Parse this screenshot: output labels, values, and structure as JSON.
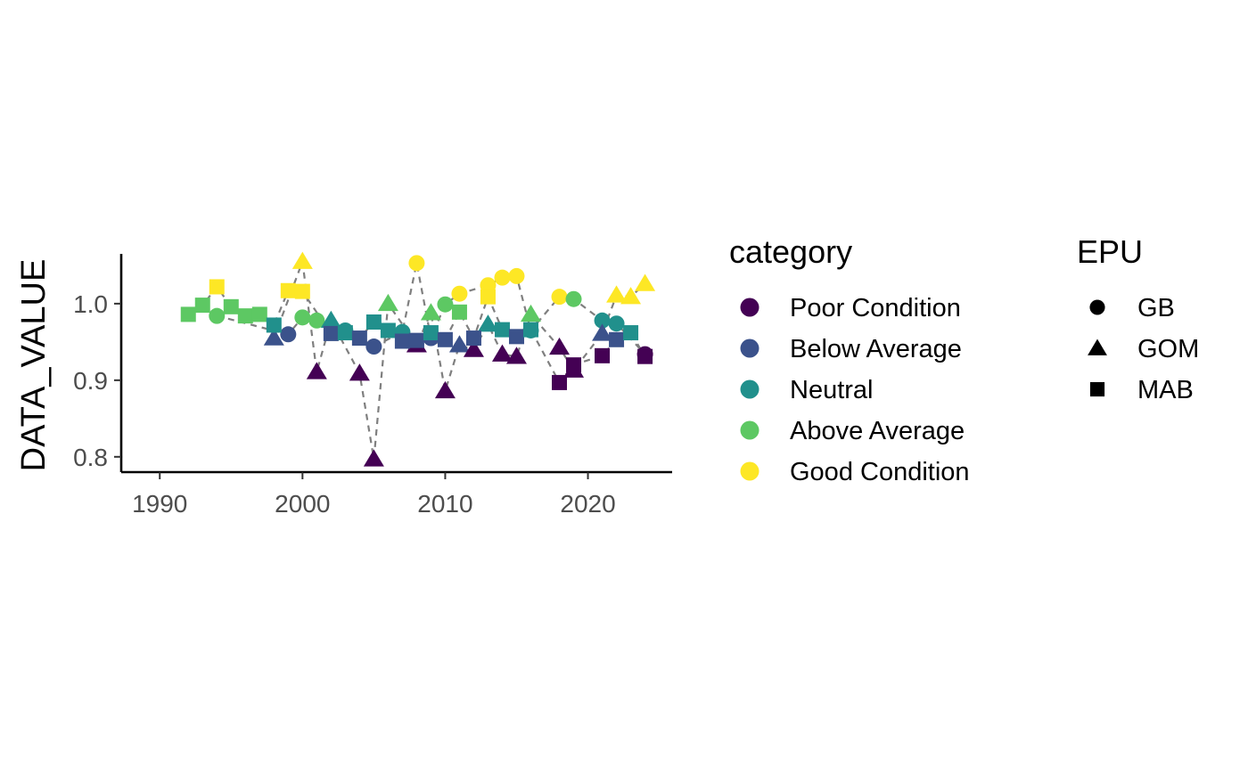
{
  "colors": {
    "Poor Condition": "#440154",
    "Below Average": "#3B528B",
    "Neutral": "#21908C",
    "Above Average": "#5DC863",
    "Good Condition": "#FDE725",
    "line": "#7F7F7F",
    "axis": "#000000",
    "tick_label": "#4D4D4D"
  },
  "chart_data": {
    "type": "scatter",
    "title": "",
    "xlabel": "",
    "ylabel": "DATA_VALUE",
    "xlim": [
      1987.3,
      2025.9
    ],
    "ylim": [
      0.78,
      1.065
    ],
    "x_ticks": [
      1990,
      2000,
      2010,
      2020
    ],
    "y_ticks": [
      0.8,
      0.9,
      1.0
    ],
    "y_tick_labels": [
      "0.8",
      "0.9",
      "1.0"
    ],
    "grid": false,
    "connecting_line": "dashed, per EPU",
    "legends": [
      {
        "title": "category",
        "placement": "right",
        "entries": [
          "Poor Condition",
          "Below Average",
          "Neutral",
          "Above Average",
          "Good Condition"
        ]
      },
      {
        "title": "EPU",
        "placement": "right",
        "entries": [
          {
            "label": "GB",
            "shape": "circle"
          },
          {
            "label": "GOM",
            "shape": "triangle"
          },
          {
            "label": "MAB",
            "shape": "square"
          }
        ]
      }
    ],
    "series": [
      {
        "name": "GB",
        "shape": "circle",
        "points": [
          {
            "x": 1994,
            "y": 0.984,
            "category": "Above Average"
          },
          {
            "x": 1999,
            "y": 0.96,
            "category": "Below Average"
          },
          {
            "x": 2000,
            "y": 0.982,
            "category": "Above Average"
          },
          {
            "x": 2001,
            "y": 0.978,
            "category": "Above Average"
          },
          {
            "x": 2003,
            "y": 0.965,
            "category": "Neutral"
          },
          {
            "x": 2005,
            "y": 0.944,
            "category": "Below Average"
          },
          {
            "x": 2007,
            "y": 0.963,
            "category": "Neutral"
          },
          {
            "x": 2008,
            "y": 1.053,
            "category": "Good Condition"
          },
          {
            "x": 2009,
            "y": 0.955,
            "category": "Below Average"
          },
          {
            "x": 2010,
            "y": 0.999,
            "category": "Above Average"
          },
          {
            "x": 2011,
            "y": 1.013,
            "category": "Good Condition"
          },
          {
            "x": 2013,
            "y": 1.024,
            "category": "Good Condition"
          },
          {
            "x": 2014,
            "y": 1.034,
            "category": "Good Condition"
          },
          {
            "x": 2015,
            "y": 1.036,
            "category": "Good Condition"
          },
          {
            "x": 2016,
            "y": 0.965,
            "category": "Neutral"
          },
          {
            "x": 2018,
            "y": 1.009,
            "category": "Good Condition"
          },
          {
            "x": 2019,
            "y": 1.006,
            "category": "Above Average"
          },
          {
            "x": 2021,
            "y": 0.978,
            "category": "Neutral"
          },
          {
            "x": 2022,
            "y": 0.974,
            "category": "Neutral"
          },
          {
            "x": 2024,
            "y": 0.934,
            "category": "Poor Condition"
          }
        ]
      },
      {
        "name": "GOM",
        "shape": "triangle",
        "points": [
          {
            "x": 1998,
            "y": 0.955,
            "category": "Below Average"
          },
          {
            "x": 2000,
            "y": 1.055,
            "category": "Good Condition"
          },
          {
            "x": 2001,
            "y": 0.911,
            "category": "Poor Condition"
          },
          {
            "x": 2002,
            "y": 0.978,
            "category": "Neutral"
          },
          {
            "x": 2004,
            "y": 0.909,
            "category": "Poor Condition"
          },
          {
            "x": 2005,
            "y": 0.797,
            "category": "Poor Condition"
          },
          {
            "x": 2006,
            "y": 1.0,
            "category": "Above Average"
          },
          {
            "x": 2008,
            "y": 0.946,
            "category": "Poor Condition"
          },
          {
            "x": 2009,
            "y": 0.988,
            "category": "Above Average"
          },
          {
            "x": 2010,
            "y": 0.886,
            "category": "Poor Condition"
          },
          {
            "x": 2011,
            "y": 0.946,
            "category": "Below Average"
          },
          {
            "x": 2012,
            "y": 0.94,
            "category": "Poor Condition"
          },
          {
            "x": 2013,
            "y": 0.973,
            "category": "Neutral"
          },
          {
            "x": 2014,
            "y": 0.934,
            "category": "Poor Condition"
          },
          {
            "x": 2015,
            "y": 0.931,
            "category": "Poor Condition"
          },
          {
            "x": 2016,
            "y": 0.986,
            "category": "Above Average"
          },
          {
            "x": 2018,
            "y": 0.943,
            "category": "Poor Condition"
          },
          {
            "x": 2019,
            "y": 0.913,
            "category": "Poor Condition"
          },
          {
            "x": 2021,
            "y": 0.961,
            "category": "Below Average"
          },
          {
            "x": 2022,
            "y": 1.011,
            "category": "Good Condition"
          },
          {
            "x": 2023,
            "y": 1.009,
            "category": "Good Condition"
          },
          {
            "x": 2024,
            "y": 1.026,
            "category": "Good Condition"
          }
        ]
      },
      {
        "name": "MAB",
        "shape": "square",
        "points": [
          {
            "x": 1992,
            "y": 0.986,
            "category": "Above Average"
          },
          {
            "x": 1993,
            "y": 0.998,
            "category": "Above Average"
          },
          {
            "x": 1994,
            "y": 1.022,
            "category": "Good Condition"
          },
          {
            "x": 1995,
            "y": 0.996,
            "category": "Above Average"
          },
          {
            "x": 1996,
            "y": 0.984,
            "category": "Above Average"
          },
          {
            "x": 1997,
            "y": 0.986,
            "category": "Above Average"
          },
          {
            "x": 1998,
            "y": 0.972,
            "category": "Neutral"
          },
          {
            "x": 1999,
            "y": 1.017,
            "category": "Good Condition"
          },
          {
            "x": 2000,
            "y": 1.016,
            "category": "Good Condition"
          },
          {
            "x": 2002,
            "y": 0.961,
            "category": "Below Average"
          },
          {
            "x": 2003,
            "y": 0.962,
            "category": "Neutral"
          },
          {
            "x": 2004,
            "y": 0.955,
            "category": "Below Average"
          },
          {
            "x": 2005,
            "y": 0.976,
            "category": "Neutral"
          },
          {
            "x": 2006,
            "y": 0.965,
            "category": "Neutral"
          },
          {
            "x": 2007,
            "y": 0.951,
            "category": "Below Average"
          },
          {
            "x": 2008,
            "y": 0.952,
            "category": "Below Average"
          },
          {
            "x": 2009,
            "y": 0.962,
            "category": "Neutral"
          },
          {
            "x": 2010,
            "y": 0.953,
            "category": "Below Average"
          },
          {
            "x": 2011,
            "y": 0.989,
            "category": "Above Average"
          },
          {
            "x": 2012,
            "y": 0.955,
            "category": "Below Average"
          },
          {
            "x": 2013,
            "y": 1.009,
            "category": "Good Condition"
          },
          {
            "x": 2014,
            "y": 0.966,
            "category": "Neutral"
          },
          {
            "x": 2015,
            "y": 0.957,
            "category": "Below Average"
          },
          {
            "x": 2016,
            "y": 0.966,
            "category": "Neutral"
          },
          {
            "x": 2018,
            "y": 0.897,
            "category": "Poor Condition"
          },
          {
            "x": 2019,
            "y": 0.92,
            "category": "Poor Condition"
          },
          {
            "x": 2021,
            "y": 0.932,
            "category": "Poor Condition"
          },
          {
            "x": 2022,
            "y": 0.953,
            "category": "Below Average"
          },
          {
            "x": 2023,
            "y": 0.962,
            "category": "Neutral"
          },
          {
            "x": 2024,
            "y": 0.931,
            "category": "Poor Condition"
          }
        ]
      }
    ]
  }
}
